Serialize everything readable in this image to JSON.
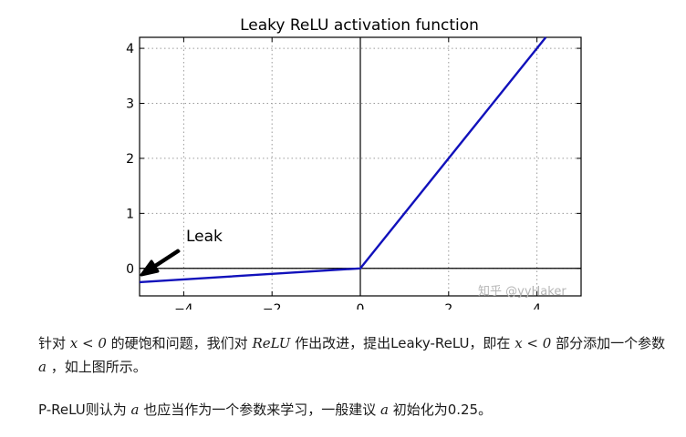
{
  "chart_data": {
    "type": "line",
    "title": "Leaky ReLU activation function",
    "xlabel": "",
    "ylabel": "",
    "xlim": [
      -5,
      5
    ],
    "ylim": [
      -0.5,
      4.2
    ],
    "xticks": [
      -4,
      -2,
      0,
      2,
      4
    ],
    "xtick_labels": [
      "−4",
      "−2",
      "0",
      "2",
      "4"
    ],
    "yticks": [
      0,
      1,
      2,
      3,
      4
    ],
    "ytick_labels": [
      "0",
      "1",
      "2",
      "3",
      "4"
    ],
    "grid": true,
    "series": [
      {
        "x": [
          -5,
          0,
          4.2
        ],
        "y": [
          -0.25,
          0,
          4.2
        ],
        "color": "#1111bb"
      }
    ],
    "annotations": [
      {
        "text": "Leak",
        "x": -5,
        "y": -0.1
      }
    ]
  },
  "watermark": "知乎 @yyHaker",
  "paragraph1": {
    "s1": "针对 ",
    "m1": "x < 0",
    "s2": " 的硬饱和问题，我们对 ",
    "m2": "ReLU",
    "s3": " 作出改进，提出Leaky-ReLU，即在 ",
    "m3": "x < 0",
    "s4": " 部分添加一个参数 ",
    "m4": "a",
    "s5": " ，如上图所示。"
  },
  "paragraph2": {
    "s1": "P-ReLU则认为 ",
    "m1": "a",
    "s2": " 也应当作为一个参数来学习，一般建议 ",
    "m2": "a",
    "s3": " 初始化为0.25。"
  }
}
